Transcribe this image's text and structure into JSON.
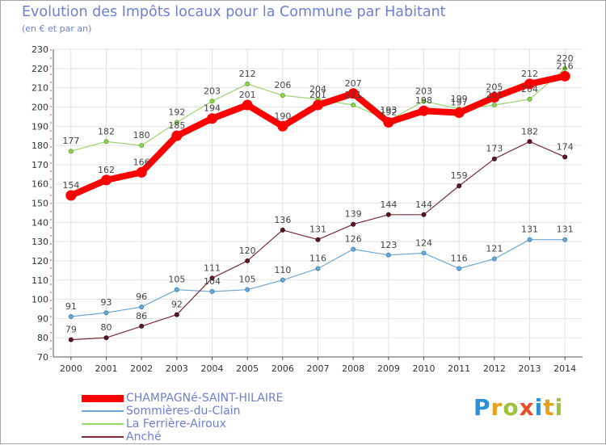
{
  "title": "Evolution des Impôts locaux pour la Commune par Habitant",
  "subtitle": "(en € et par an)",
  "logo_text": "Proxiti",
  "chart_data": {
    "type": "line",
    "x": [
      "2000",
      "2001",
      "2002",
      "2003",
      "2004",
      "2005",
      "2006",
      "2007",
      "2008",
      "2009",
      "2010",
      "2011",
      "2012",
      "2013",
      "2014"
    ],
    "ylim": [
      70,
      230
    ],
    "yticks": [
      70,
      80,
      90,
      100,
      110,
      120,
      130,
      140,
      150,
      160,
      170,
      180,
      190,
      200,
      210,
      220,
      230
    ],
    "grid": true,
    "legend_position": "bottom-left",
    "series": [
      {
        "name": "CHAMPAGNé-SAINT-HILAIRE",
        "color": "#ff0000",
        "values": [
          154,
          162,
          166,
          185,
          194,
          201,
          190,
          201,
          207,
          192,
          198,
          197,
          205,
          212,
          216
        ]
      },
      {
        "name": "Sommières-du-Clain",
        "color": "#6ea7d4",
        "values": [
          91,
          93,
          96,
          105,
          104,
          105,
          110,
          116,
          126,
          123,
          124,
          116,
          121,
          131,
          131
        ]
      },
      {
        "name": "La Ferrière-Airoux",
        "color": "#99d66e",
        "values": [
          177,
          182,
          180,
          192,
          203,
          212,
          206,
          204,
          201,
          193,
          203,
          199,
          201,
          204,
          220
        ]
      },
      {
        "name": "Anché",
        "color": "#7a2b36",
        "values": [
          79,
          80,
          86,
          92,
          111,
          120,
          136,
          131,
          139,
          144,
          144,
          159,
          173,
          182,
          174
        ]
      }
    ]
  }
}
